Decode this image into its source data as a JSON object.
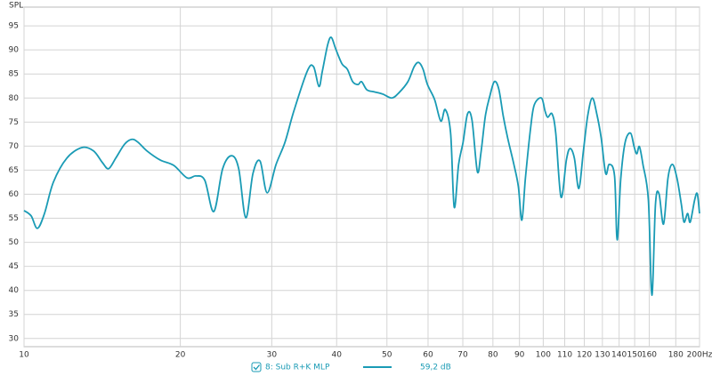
{
  "chart_data": {
    "type": "line",
    "y_label": "SPL",
    "log_x": true,
    "grid": true,
    "xlim": [
      10,
      200
    ],
    "ylim": [
      28.3,
      98.9
    ],
    "xticks": [
      10,
      20,
      30,
      40,
      50,
      60,
      70,
      80,
      90,
      100,
      110,
      120,
      130,
      140,
      150,
      160,
      180,
      {
        "value": 200,
        "label": "200Hz"
      }
    ],
    "yticks": [
      30,
      35,
      40,
      45,
      50,
      55,
      60,
      65,
      70,
      75,
      80,
      85,
      90,
      95
    ],
    "legend_value": "59,2 dB",
    "x": [
      10.0,
      10.32,
      10.61,
      10.95,
      11.39,
      12.09,
      12.93,
      13.61,
      14.15,
      14.55,
      15.02,
      15.62,
      16.13,
      16.58,
      17.25,
      18.3,
      19.42,
      20.6,
      21.43,
      22.29,
      23.2,
      24.13,
      25.1,
      25.91,
      26.74,
      27.6,
      28.48,
      29.39,
      30.58,
      31.81,
      33.09,
      35.12,
      36.11,
      36.98,
      37.55,
      38.45,
      39.07,
      39.84,
      40.96,
      41.94,
      42.95,
      43.98,
      44.68,
      45.75,
      47.21,
      49.12,
      51.1,
      52.74,
      54.87,
      56.41,
      57.54,
      58.68,
      59.84,
      61.76,
      63.49,
      64.76,
      66.31,
      67.38,
      68.71,
      70.08,
      71.48,
      72.91,
      74.66,
      75.86,
      77.37,
      78.91,
      80.49,
      82.09,
      83.73,
      85.4,
      87.79,
      89.55,
      90.96,
      92.41,
      94.63,
      96.12,
      99.21,
      100.8,
      102.0,
      104.0,
      105.7,
      108.2,
      110.8,
      112.6,
      114.8,
      117.1,
      119.5,
      121.8,
      124.3,
      126.8,
      129.3,
      131.9,
      134.0,
      137.2,
      138.8,
      141.0,
      143.8,
      147.3,
      149.6,
      151.4,
      153.2,
      155.6,
      159.4,
      161.9,
      164.5,
      167.1,
      170.5,
      173.9,
      177.3,
      180.9,
      184.5,
      186.7,
      189.7,
      191.9,
      195.7,
      198.0,
      200.0
    ],
    "series": [
      {
        "name": "8: Sub R+K MLP",
        "color": "#1a9bb5",
        "values": [
          56.6,
          55.5,
          52.9,
          56.0,
          62.5,
          67.5,
          69.7,
          69.0,
          66.6,
          65.3,
          67.5,
          70.4,
          71.4,
          70.8,
          69.0,
          67.1,
          66.0,
          63.4,
          63.8,
          62.9,
          56.4,
          65.3,
          68.0,
          65.3,
          55.1,
          64.3,
          66.9,
          60.3,
          66.2,
          70.8,
          77.3,
          85.6,
          86.5,
          82.4,
          85.6,
          91.1,
          92.6,
          90.2,
          87.1,
          86.0,
          83.4,
          82.8,
          83.4,
          81.7,
          81.3,
          80.8,
          80.0,
          81.1,
          83.4,
          86.5,
          87.4,
          86.0,
          82.8,
          79.7,
          75.2,
          77.6,
          72.7,
          57.3,
          66.2,
          70.8,
          76.7,
          75.4,
          64.7,
          68.6,
          76.3,
          80.4,
          83.4,
          81.9,
          76.3,
          71.7,
          66.2,
          61.6,
          54.6,
          63.4,
          74.1,
          78.6,
          80.0,
          77.3,
          76.0,
          76.7,
          72.7,
          59.4,
          67.1,
          69.5,
          67.5,
          61.2,
          69.0,
          76.3,
          80.0,
          76.7,
          71.7,
          64.3,
          66.2,
          63.8,
          50.5,
          63.1,
          70.8,
          72.7,
          69.9,
          68.4,
          69.9,
          66.2,
          58.8,
          39.0,
          57.9,
          60.1,
          53.8,
          63.4,
          66.2,
          63.4,
          57.9,
          54.2,
          56.0,
          54.2,
          58.8,
          60.1,
          56.0
        ]
      }
    ]
  }
}
